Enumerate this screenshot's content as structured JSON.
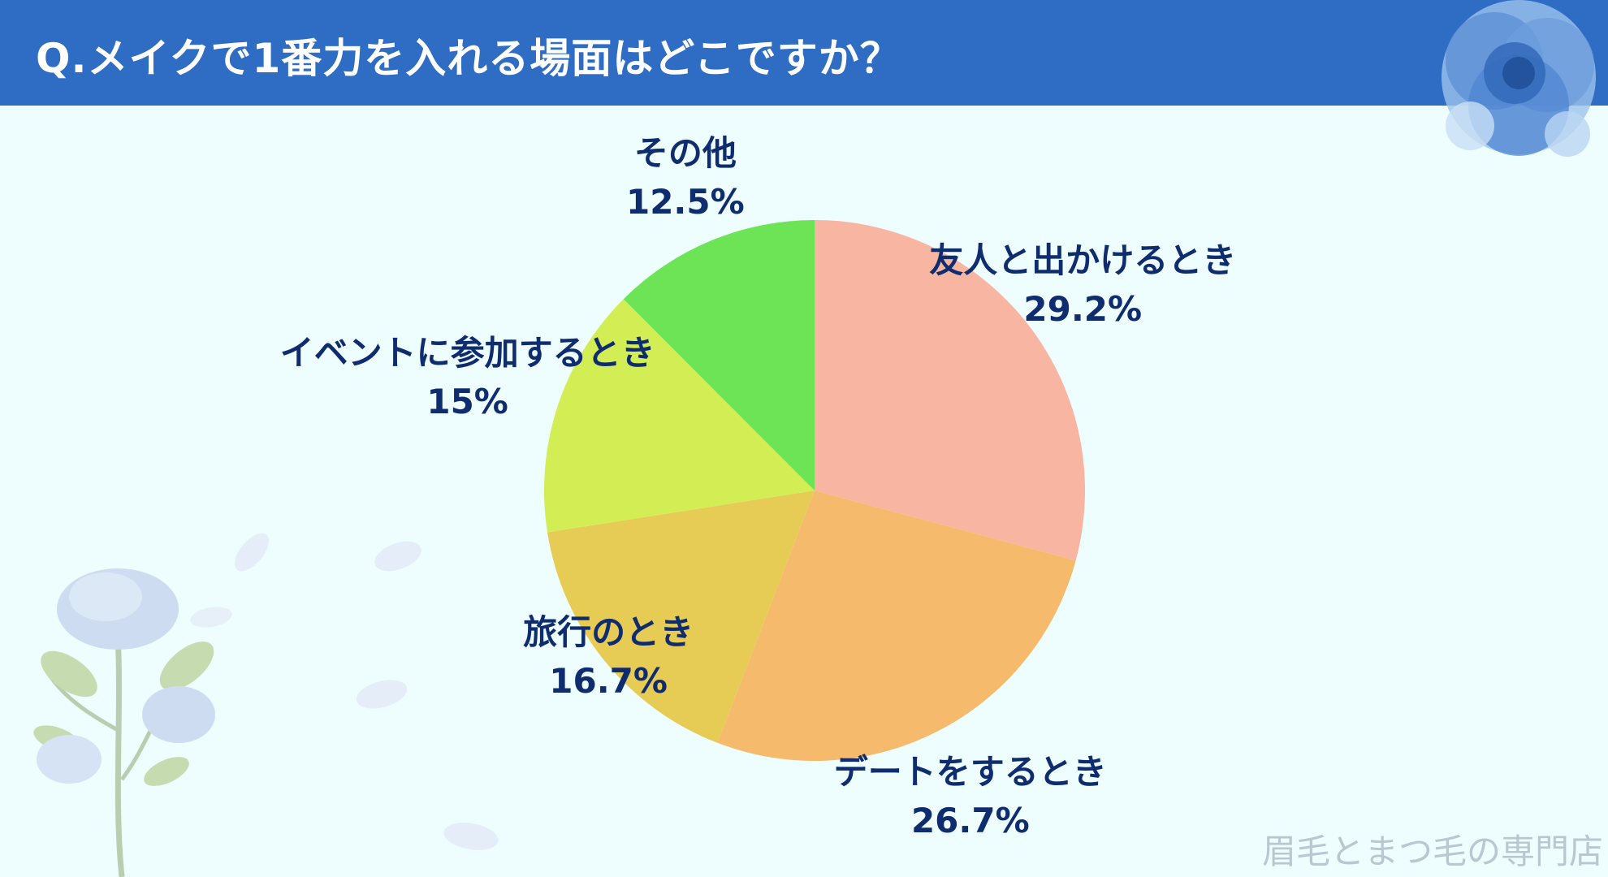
{
  "header": {
    "title": "Q.メイクで1番力を入れる場面はどこですか？"
  },
  "watermark": "眉毛とまつ毛の専門店",
  "colors": {
    "header_bg": "#2f6cc4",
    "background": "#eefdfd",
    "label_text": "#0f2d6e"
  },
  "chart_data": {
    "type": "pie",
    "title": "Q.メイクで1番力を入れる場面はどこですか？",
    "slices": [
      {
        "label": "友人と出かけるとき",
        "value": 29.2,
        "value_label": "29.2%",
        "color": "#f8b5a2"
      },
      {
        "label": "デートをするとき",
        "value": 26.7,
        "value_label": "26.7%",
        "color": "#f6ba6d"
      },
      {
        "label": "旅行のとき",
        "value": 16.7,
        "value_label": "16.7%",
        "color": "#e6cc55"
      },
      {
        "label": "イベントに参加するとき",
        "value": 15,
        "value_label": "15%",
        "color": "#d3ee55"
      },
      {
        "label": "その他",
        "value": 12.5,
        "value_label": "12.5%",
        "color": "#6ce455"
      }
    ]
  }
}
